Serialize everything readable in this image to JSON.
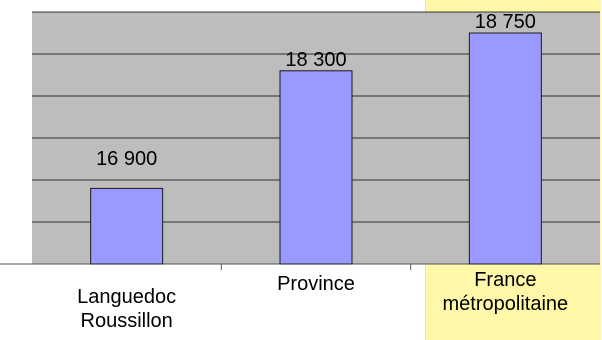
{
  "colors": {
    "plot_background": "#bdbdbd",
    "bar_fill": "#9999ff",
    "bar_stroke": "#1a1a1a",
    "gridline": "#000000",
    "highlight": "#fff8a8"
  },
  "chart_data": {
    "type": "bar",
    "categories": [
      "Languedoc\nRoussillon",
      "Province",
      "France\nmétropolitaine"
    ],
    "values": [
      16900,
      18300,
      18750
    ],
    "value_labels": [
      "16 900",
      "18 300",
      "18 750"
    ],
    "title": "",
    "xlabel": "",
    "ylabel": "",
    "ylim": [
      16000,
      19000
    ],
    "grid": true,
    "legend": "none"
  }
}
